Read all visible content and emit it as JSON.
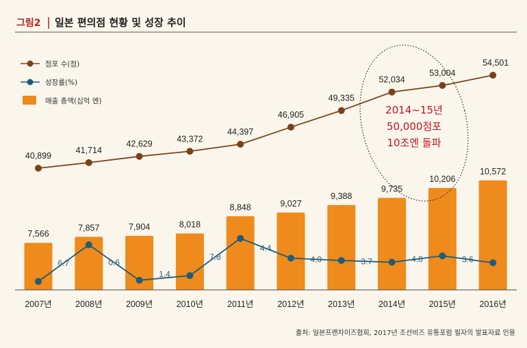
{
  "colors": {
    "bar": "#ef8a1c",
    "stores_line": "#7a4218",
    "growth_line": "#1f5c7a",
    "title_accent": "#b0261f",
    "note": "#c1121f"
  },
  "chart_data": {
    "type": "bar",
    "title_tag": "그림2",
    "title": "일본 편의점 현황 및 성장 추이",
    "categories": [
      "2007년",
      "2008년",
      "2009년",
      "2010년",
      "2011년",
      "2012년",
      "2013년",
      "2014년",
      "2015년",
      "2016년"
    ],
    "series": [
      {
        "name": "점포 수(점)",
        "type": "line",
        "values": [
          40899,
          41714,
          42629,
          43372,
          44397,
          46905,
          49335,
          52034,
          53004,
          54501
        ],
        "labels": [
          "40,899",
          "41,714",
          "42,629",
          "43,372",
          "44,397",
          "46,905",
          "49,335",
          "52,034",
          "53,004",
          "54,501"
        ]
      },
      {
        "name": "성장률(%)",
        "type": "line",
        "values": [
          null,
          6.7,
          0.6,
          1.4,
          7.8,
          4.4,
          4.0,
          3.7,
          4.8,
          3.6
        ],
        "labels": [
          "",
          "6.7",
          "0.6",
          "1.4",
          "7.8",
          "4.4",
          "4.0",
          "3.7",
          "4.8",
          "3.6"
        ]
      },
      {
        "name": "매출 총액(십억 엔)",
        "type": "bar",
        "values": [
          7566,
          7857,
          7904,
          8018,
          8848,
          9027,
          9388,
          9735,
          10206,
          10572
        ],
        "labels": [
          "7,566",
          "7,857",
          "7,904",
          "8,018",
          "8,848",
          "9,027",
          "9,388",
          "9,735",
          "10,206",
          "10,572"
        ]
      }
    ],
    "annotation": [
      "2014~15년",
      "50,000점포",
      "10조엔 돌파"
    ],
    "source": "출처: 일본프랜차이즈협회, 2017년 조선비즈 유통포럼 필자의 발표자료 인용"
  }
}
